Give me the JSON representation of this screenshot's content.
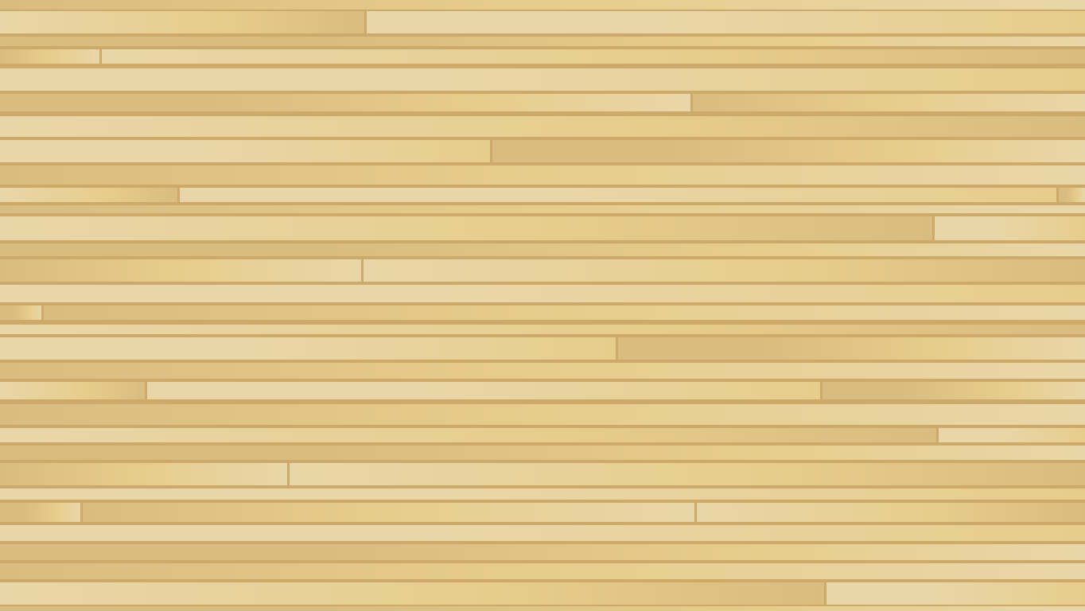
{
  "background": {
    "kind": "wood-plank-floor",
    "colors": {
      "gap": "#cdaa6a",
      "light": "#e9d6a8",
      "mid": "#e7cd8c",
      "dark": "#d9bc80"
    }
  }
}
